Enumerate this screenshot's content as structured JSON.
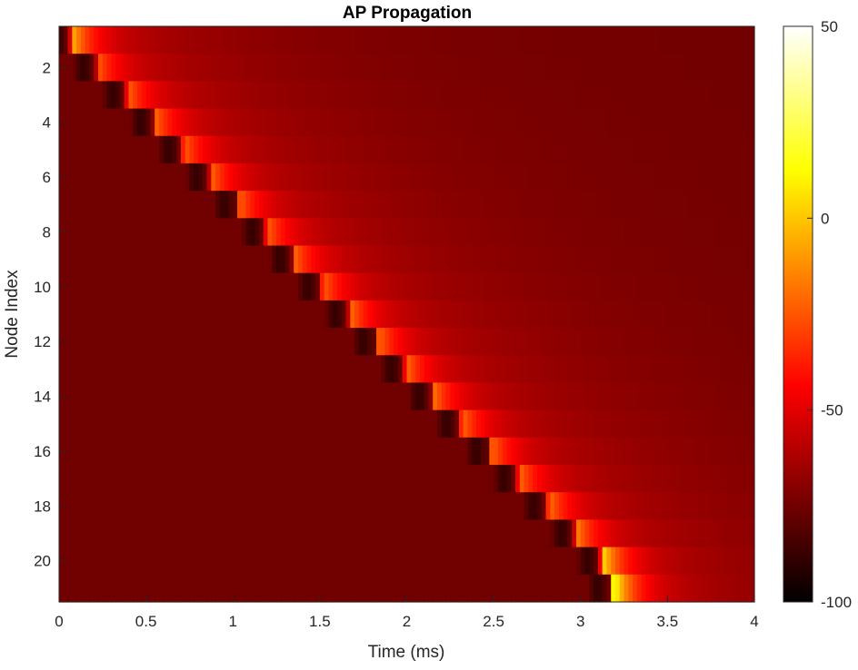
{
  "chart_data": {
    "type": "heatmap",
    "title": "AP Propagation",
    "xlabel": "Time (ms)",
    "ylabel": "Node Index",
    "xlim": [
      0,
      4
    ],
    "ylim": [
      0.5,
      21.5
    ],
    "y_reversed": true,
    "x_ticks": [
      0,
      0.5,
      1,
      1.5,
      2,
      2.5,
      3,
      3.5,
      4
    ],
    "x_tick_labels": [
      "0",
      "0.5",
      "1",
      "1.5",
      "2",
      "2.5",
      "3",
      "3.5",
      "4"
    ],
    "y_ticks": [
      2,
      4,
      6,
      8,
      10,
      12,
      14,
      16,
      18,
      20
    ],
    "y_tick_labels": [
      "2",
      "4",
      "6",
      "8",
      "10",
      "12",
      "14",
      "16",
      "18",
      "20"
    ],
    "colormap": "hot",
    "color_limits": [
      -100,
      50
    ],
    "colorbar_ticks": [
      -100,
      -50,
      0,
      50
    ],
    "colorbar_tick_labels": [
      "-100",
      "-50",
      "0",
      "50"
    ],
    "resting_potential_mV": -75,
    "nodes": [
      1,
      2,
      3,
      4,
      5,
      6,
      7,
      8,
      9,
      10,
      11,
      12,
      13,
      14,
      15,
      16,
      17,
      18,
      19,
      20,
      21
    ],
    "spike_onset_ms": [
      0.05,
      0.2,
      0.37,
      0.53,
      0.69,
      0.85,
      1.01,
      1.17,
      1.33,
      1.49,
      1.65,
      1.81,
      1.97,
      2.13,
      2.29,
      2.46,
      2.62,
      2.79,
      2.95,
      3.1,
      3.16
    ],
    "spike_peak_mV": [
      -5,
      -25,
      -22,
      -22,
      -22,
      -22,
      -22,
      -22,
      -22,
      -22,
      -20,
      -20,
      -20,
      -20,
      -20,
      -20,
      -20,
      -18,
      -15,
      5,
      20
    ]
  }
}
